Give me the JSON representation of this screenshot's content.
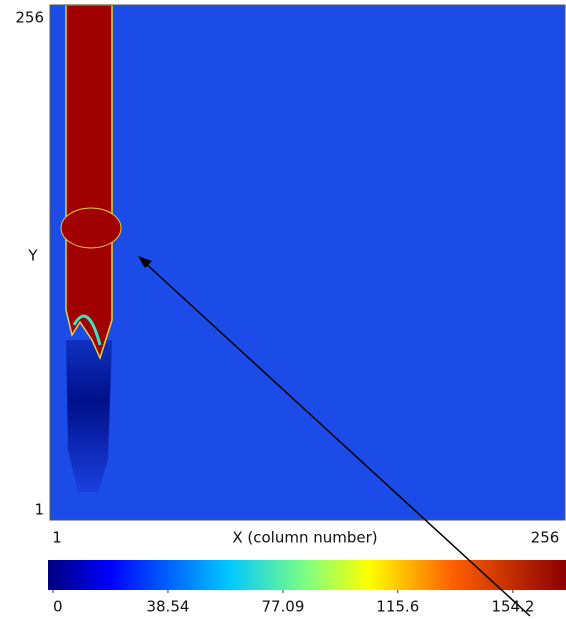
{
  "chart_data": {
    "type": "heatmap",
    "xlabel": "X (column number)",
    "ylabel": "Y",
    "xlim": [
      1,
      256
    ],
    "xticks": [
      1,
      256
    ],
    "ylim": [
      1,
      256
    ],
    "yticks": [
      1,
      256
    ],
    "colorbar": {
      "lim": [
        0,
        172
      ],
      "ticks": [
        0,
        38.54,
        77.09,
        115.6,
        154.2
      ]
    }
  }
}
